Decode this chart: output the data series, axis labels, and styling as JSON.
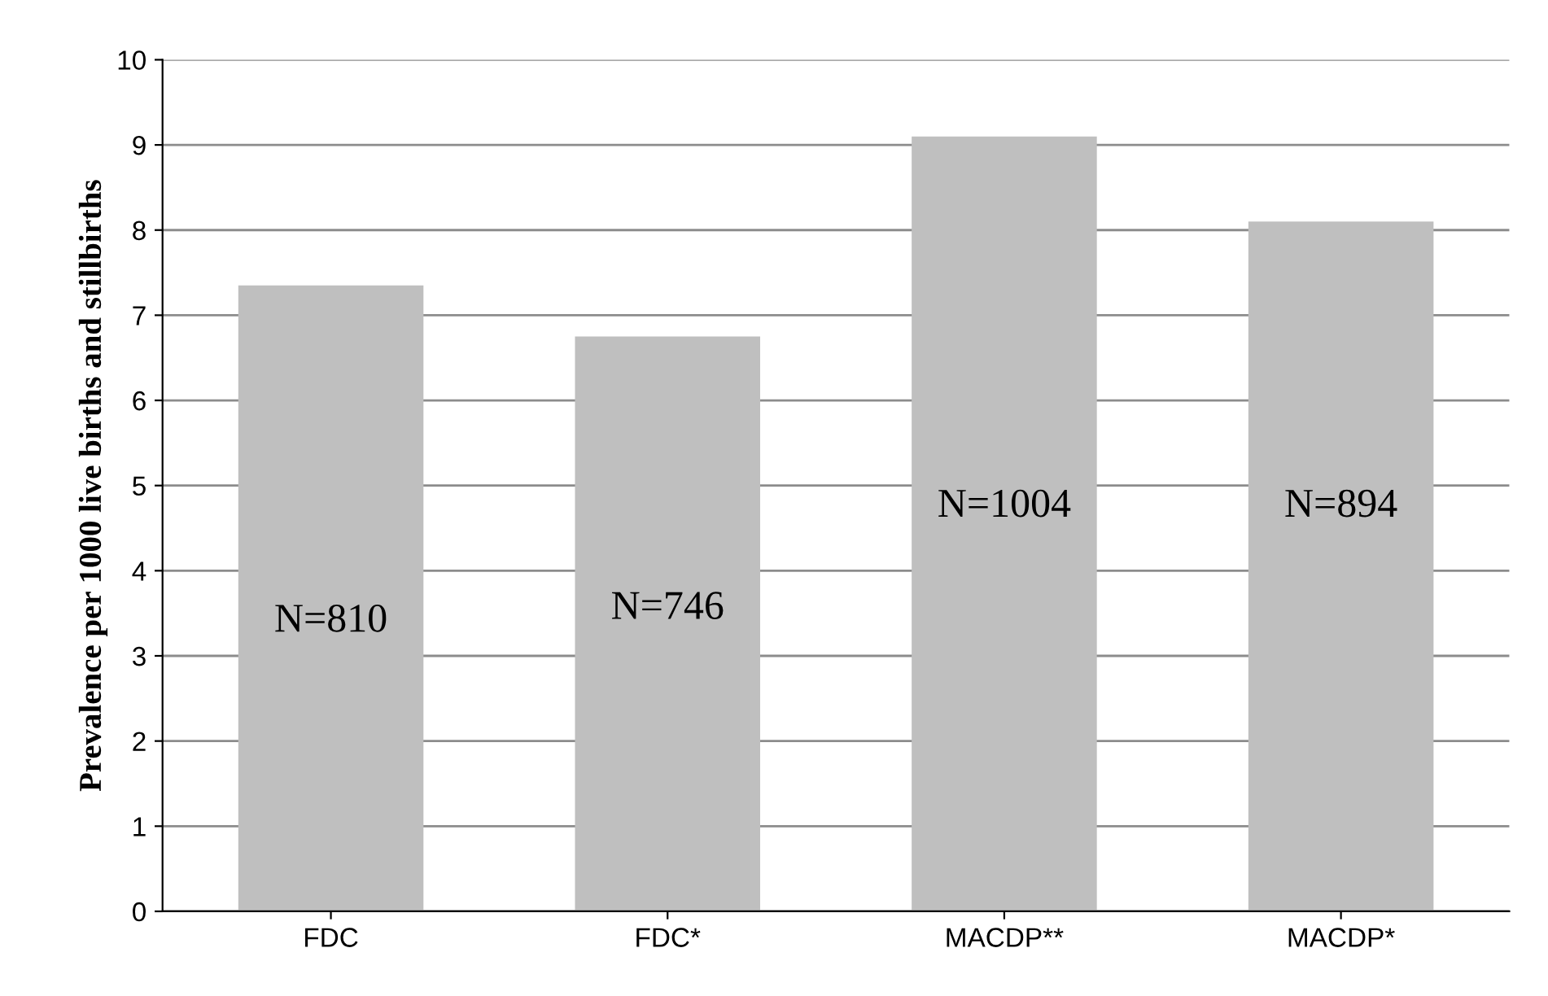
{
  "chart_data": {
    "type": "bar",
    "ylabel": "Prevalence per 1000 live births and stillbirths",
    "categories": [
      "FDC",
      "FDC*",
      "MACDP**",
      "MACDP*"
    ],
    "values": [
      7.35,
      6.75,
      9.1,
      8.1
    ],
    "color": "#bfbfbf",
    "ylim": [
      0,
      10
    ],
    "yticks": [
      0,
      1,
      2,
      3,
      4,
      5,
      6,
      7,
      8,
      9,
      10
    ],
    "grid": "y",
    "annotations": [
      "N=810",
      "N=746",
      "N=1004",
      "N=894"
    ]
  }
}
